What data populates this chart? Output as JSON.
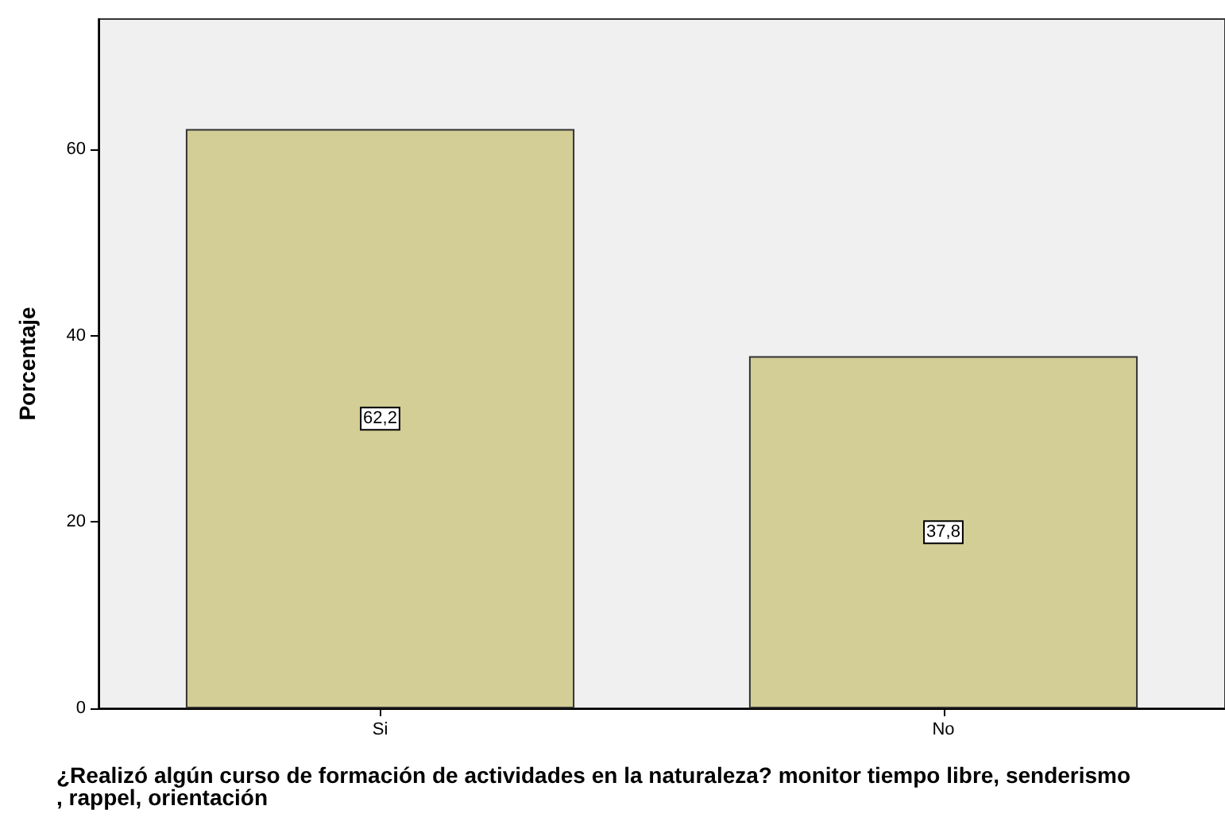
{
  "chart_data": {
    "type": "bar",
    "xlabel": "¿Realizó algún curso de formación de actividades en la naturaleza? monitor tiempo libre, senderismo, rappel, orientación",
    "ylabel": "Porcentaje",
    "categories": [
      "Si",
      "No"
    ],
    "values": [
      62.2,
      37.8
    ],
    "value_labels": [
      "62,2",
      "37,8"
    ],
    "color": "#d3cd96",
    "ylim": [
      0,
      74
    ],
    "yticks": [
      0,
      20,
      40,
      60
    ],
    "grid": false
  }
}
